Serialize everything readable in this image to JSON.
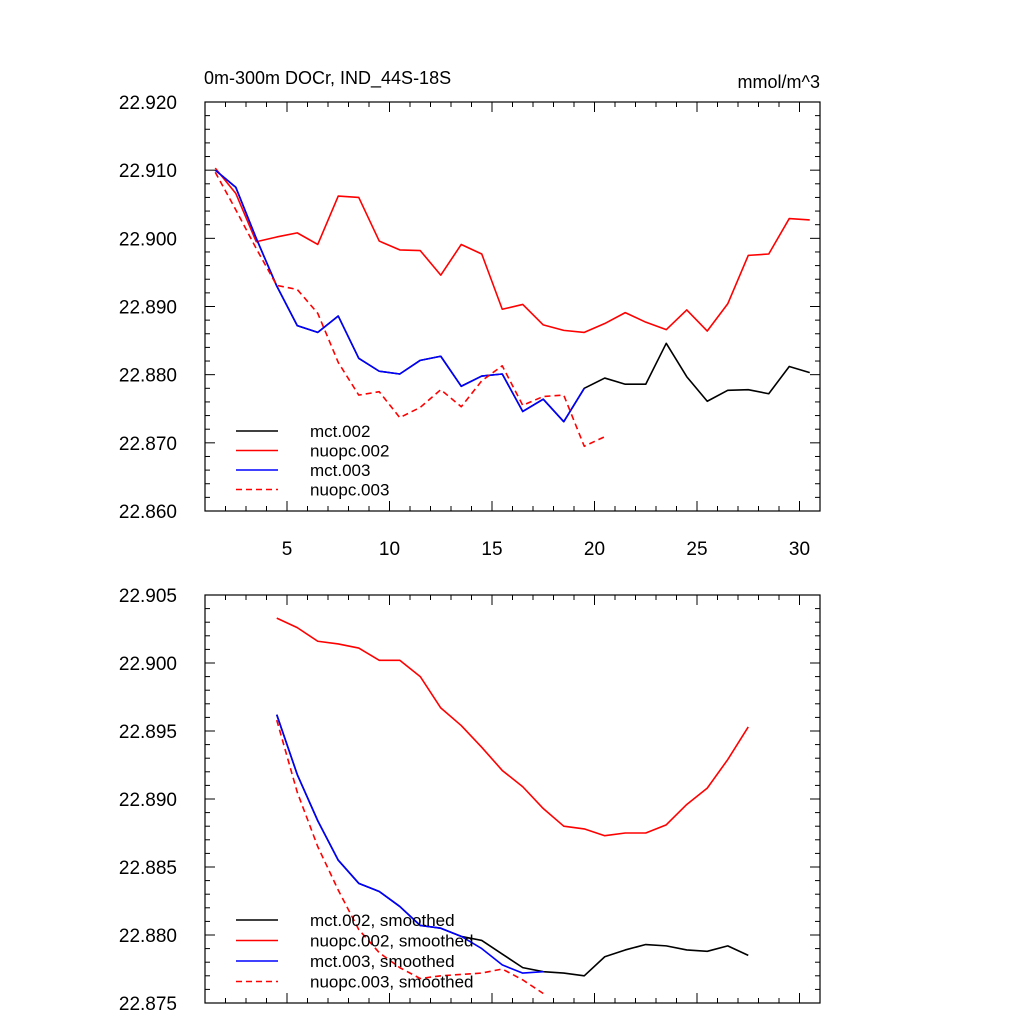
{
  "chart_data": [
    {
      "type": "line",
      "title": "0m-300m DOCr, IND_44S-18S",
      "units": "mmol/m^3",
      "xlim": [
        1,
        31
      ],
      "ylim": [
        22.86,
        22.92
      ],
      "xticks": [
        5,
        10,
        15,
        20,
        25,
        30
      ],
      "xtick_labels": [
        "5",
        "10",
        "15",
        "20",
        "25",
        "30"
      ],
      "yticks": [
        22.86,
        22.87,
        22.88,
        22.89,
        22.9,
        22.91,
        22.92
      ],
      "ytick_labels": [
        "22.860",
        "22.870",
        "22.880",
        "22.890",
        "22.900",
        "22.910",
        "22.920"
      ],
      "legend_position": "bottom-left",
      "series": [
        {
          "name": "mct.002",
          "color": "#000000",
          "dash": "solid",
          "x": [
            1.5,
            2.5,
            3.5,
            4.5,
            5.5,
            6.5,
            7.5,
            8.5,
            9.5,
            10.5,
            11.5,
            12.5,
            13.5,
            14.5,
            15.5,
            16.5,
            17.5,
            18.5,
            19.5,
            20.5,
            21.5,
            22.5,
            23.5,
            24.5,
            25.5,
            26.5,
            27.5,
            28.5,
            29.5,
            30.5
          ],
          "y": [
            22.91,
            22.9075,
            22.9,
            22.893,
            22.8872,
            22.8862,
            22.8886,
            22.8824,
            22.8805,
            22.8801,
            22.8821,
            22.8827,
            22.8783,
            22.8798,
            22.8801,
            22.8746,
            22.8764,
            22.8731,
            22.878,
            22.8795,
            22.8786,
            22.8786,
            22.8846,
            22.8797,
            22.8761,
            22.8777,
            22.8778,
            22.8772,
            22.8812,
            22.8803
          ]
        },
        {
          "name": "nuopc.002",
          "color": "#ff0000",
          "dash": "solid",
          "x": [
            1.5,
            2.5,
            3.5,
            4.5,
            5.5,
            6.5,
            7.5,
            8.5,
            9.5,
            10.5,
            11.5,
            12.5,
            13.5,
            14.5,
            15.5,
            16.5,
            17.5,
            18.5,
            19.5,
            20.5,
            21.5,
            22.5,
            23.5,
            24.5,
            25.5,
            26.5,
            27.5,
            28.5,
            29.5,
            30.5
          ],
          "y": [
            22.9103,
            22.9066,
            22.8995,
            22.9002,
            22.9008,
            22.8991,
            22.9062,
            22.906,
            22.8996,
            22.8983,
            22.8982,
            22.8946,
            22.8991,
            22.8977,
            22.8896,
            22.8903,
            22.8873,
            22.8865,
            22.8862,
            22.8875,
            22.8891,
            22.8877,
            22.8866,
            22.8895,
            22.8864,
            22.8904,
            22.8975,
            22.8977,
            22.9029,
            22.9027
          ]
        },
        {
          "name": "mct.003",
          "color": "#0000ff",
          "dash": "solid",
          "x": [
            1.5,
            2.5,
            3.5,
            4.5,
            5.5,
            6.5,
            7.5,
            8.5,
            9.5,
            10.5,
            11.5,
            12.5,
            13.5,
            14.5,
            15.5,
            16.5,
            17.5,
            18.5,
            19.5
          ],
          "y": [
            22.91,
            22.9075,
            22.9,
            22.893,
            22.8872,
            22.8862,
            22.8886,
            22.8824,
            22.8805,
            22.8801,
            22.8821,
            22.8827,
            22.8783,
            22.8798,
            22.8801,
            22.8746,
            22.8764,
            22.8731,
            22.878
          ]
        },
        {
          "name": "nuopc.003",
          "color": "#ff0000",
          "dash": "dashed",
          "x": [
            1.5,
            2.5,
            3.5,
            4.5,
            5.5,
            6.5,
            7.5,
            8.5,
            9.5,
            10.5,
            11.5,
            12.5,
            13.5,
            14.5,
            15.5,
            16.5,
            17.5,
            18.5,
            19.5,
            20.5
          ],
          "y": [
            22.9097,
            22.9042,
            22.8985,
            22.8931,
            22.8925,
            22.889,
            22.8818,
            22.877,
            22.8775,
            22.8737,
            22.8752,
            22.8778,
            22.8753,
            22.8791,
            22.8813,
            22.8755,
            22.8768,
            22.877,
            22.8695,
            22.8709
          ]
        }
      ]
    },
    {
      "type": "line",
      "title": "",
      "xlim": [
        1,
        31
      ],
      "ylim": [
        22.875,
        22.905
      ],
      "xticks": [
        5,
        10,
        15,
        20,
        25,
        30
      ],
      "yticks": [
        22.875,
        22.88,
        22.885,
        22.89,
        22.895,
        22.9,
        22.905
      ],
      "ytick_labels": [
        "22.875",
        "22.880",
        "22.885",
        "22.890",
        "22.895",
        "22.900",
        "22.905"
      ],
      "legend_position": "bottom-left",
      "series": [
        {
          "name": "mct.002, smoothed",
          "color": "#000000",
          "dash": "solid",
          "x": [
            4.5,
            5.5,
            6.5,
            7.5,
            8.5,
            9.5,
            10.5,
            11.5,
            12.5,
            13.5,
            14.5,
            15.5,
            16.5,
            17.5,
            18.5,
            19.5,
            20.5,
            21.5,
            22.5,
            23.5,
            24.5,
            25.5,
            26.5,
            27.5
          ],
          "y": [
            22.8962,
            22.8918,
            22.8884,
            22.8855,
            22.8838,
            22.8832,
            22.8821,
            22.8807,
            22.8805,
            22.8799,
            22.8796,
            22.8786,
            22.8776,
            22.8773,
            22.8772,
            22.877,
            22.8784,
            22.8789,
            22.8793,
            22.8792,
            22.8789,
            22.8788,
            22.8792,
            22.8785
          ]
        },
        {
          "name": "nuopc.002, smoothed",
          "color": "#ff0000",
          "dash": "solid",
          "x": [
            4.5,
            5.5,
            6.5,
            7.5,
            8.5,
            9.5,
            10.5,
            11.5,
            12.5,
            13.5,
            14.5,
            15.5,
            16.5,
            17.5,
            18.5,
            19.5,
            20.5,
            21.5,
            22.5,
            23.5,
            24.5,
            25.5,
            26.5,
            27.5
          ],
          "y": [
            22.9033,
            22.9026,
            22.9016,
            22.9014,
            22.9011,
            22.9002,
            22.9002,
            22.899,
            22.8967,
            22.8954,
            22.8938,
            22.8921,
            22.8909,
            22.8893,
            22.888,
            22.8878,
            22.8873,
            22.8875,
            22.8875,
            22.8881,
            22.8896,
            22.8908,
            22.8929,
            22.8953
          ]
        },
        {
          "name": "mct.003, smoothed",
          "color": "#0000ff",
          "dash": "solid",
          "x": [
            4.5,
            5.5,
            6.5,
            7.5,
            8.5,
            9.5,
            10.5,
            11.5,
            12.5,
            13.5,
            14.5,
            15.5,
            16.5,
            17.5
          ],
          "y": [
            22.8962,
            22.8918,
            22.8884,
            22.8855,
            22.8838,
            22.8832,
            22.8821,
            22.8807,
            22.8805,
            22.8799,
            22.879,
            22.8778,
            22.8772,
            22.8773
          ]
        },
        {
          "name": "nuopc.003, smoothed",
          "color": "#ff0000",
          "dash": "dashed",
          "x": [
            4.5,
            5.5,
            6.5,
            7.5,
            8.5,
            9.5,
            10.5,
            11.5,
            12.5,
            13.5,
            14.5,
            15.5,
            16.5,
            17.5
          ],
          "y": [
            22.8958,
            22.8905,
            22.8865,
            22.8833,
            22.8804,
            22.8787,
            22.8776,
            22.8768,
            22.877,
            22.8771,
            22.8772,
            22.8775,
            22.8767,
            22.8757
          ]
        }
      ]
    }
  ]
}
